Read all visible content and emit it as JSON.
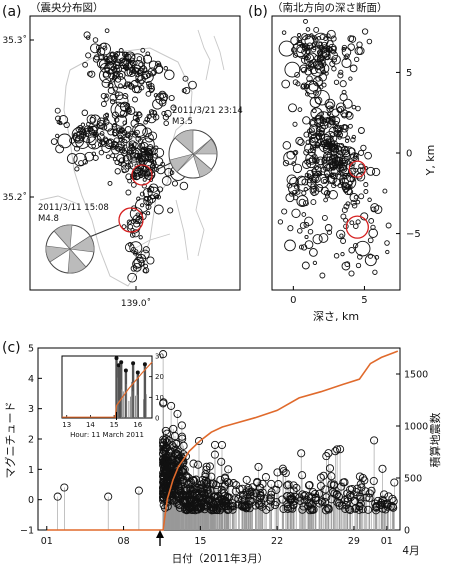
{
  "panel_a": {
    "label": "(a)",
    "title": "（震央分布図）",
    "lat_top": "35.3˚",
    "lat_mid": "35.2˚",
    "lon_label": "139.0˚",
    "annotation_1": {
      "line1": "2011/3/21 23:14",
      "line2": "M3.5"
    },
    "annotation_2": {
      "line1": "2011/3/11 15:08",
      "line2": "M4.8"
    }
  },
  "panel_b": {
    "label": "(b)",
    "title": "（南北方向の深さ断面）",
    "y_ticks": [
      "5",
      "0",
      "−5"
    ],
    "y_axis_label": "Y, km",
    "x_ticks": [
      "0",
      "5"
    ],
    "x_axis_label": "深さ, km"
  },
  "panel_c": {
    "label": "(c)",
    "left_axis_label": "マグニチュード",
    "right_axis_label": "積算地震数",
    "x_axis_label": "日付（2011年3月）",
    "april_label": "4月",
    "x_ticks": [
      "01",
      "08",
      "15",
      "22",
      "29",
      "01"
    ],
    "left_ticks": [
      "5",
      "4",
      "3",
      "2",
      "1",
      "0",
      "−1"
    ],
    "right_ticks": [
      "1500",
      "1000",
      "500",
      "0"
    ],
    "inset": {
      "x_ticks": [
        "13",
        "14",
        "15",
        "16"
      ],
      "right_ticks": [
        "30",
        "20",
        "10",
        "0"
      ],
      "xlabel": "Hour: 11 March 2011"
    }
  },
  "chart_data": [
    {
      "type": "scatter",
      "panel": "(a)",
      "title": "（震央分布図）",
      "y_ticks": [
        "35.3˚",
        "35.2˚"
      ],
      "x_ticks": [
        "139.0˚"
      ],
      "highlighted_events": [
        {
          "label": "2011/3/21 23:14",
          "magnitude": 3.5
        },
        {
          "label": "2011/3/11 15:08",
          "magnitude": 4.8
        }
      ]
    },
    {
      "type": "scatter",
      "panel": "(b)",
      "title": "（南北方向の深さ断面）",
      "xlabel": "深さ, km",
      "ylabel": "Y, km",
      "xlim": [
        -1.5,
        7.5
      ],
      "ylim": [
        -8.5,
        8.5
      ],
      "x_ticks": [
        0,
        5
      ],
      "y_ticks": [
        5,
        0,
        -5
      ],
      "highlighted_events": [
        {
          "depth_km": 4.5,
          "y_km": -1.0
        },
        {
          "depth_km": 4.5,
          "y_km": -4.6
        }
      ]
    },
    {
      "type": "scatter",
      "panel": "(c)",
      "xlabel": "日付（2011年3月）",
      "ylabel": "マグニチュード",
      "y2label": "積算地震数",
      "x_ticks": [
        "01",
        "08",
        "15",
        "22",
        "29",
        "01"
      ],
      "ylim": [
        -1,
        5
      ],
      "y2lim": [
        0,
        1750
      ],
      "early_events": [
        {
          "day": 2.0,
          "magnitude": 0.1
        },
        {
          "day": 2.6,
          "magnitude": 0.4
        },
        {
          "day": 6.6,
          "magnitude": 0.1
        },
        {
          "day": 9.4,
          "magnitude": 0.3
        }
      ],
      "mainshock": {
        "day": 11.6,
        "magnitude": 4.8
      },
      "cumulative_count": {
        "day": [
          1,
          11.6,
          11.8,
          12,
          12.5,
          13,
          14,
          15,
          16,
          17,
          18,
          20,
          22,
          24,
          26,
          28,
          29.5,
          30.5,
          31.5,
          32.5,
          33
        ],
        "count": [
          0,
          0,
          150,
          300,
          480,
          610,
          760,
          860,
          940,
          990,
          1020,
          1080,
          1150,
          1270,
          1330,
          1400,
          1450,
          1600,
          1660,
          1700,
          1720
        ]
      }
    },
    {
      "type": "bar",
      "panel": "(c) inset",
      "xlabel": "Hour: 11 March 2011",
      "x_ticks": [
        13,
        14,
        15,
        16
      ],
      "xlim": [
        12.8,
        16.6
      ],
      "ylim": [
        -1,
        5
      ],
      "y2lim": [
        0,
        30
      ],
      "events": [
        {
          "hour": 15.1,
          "magnitude": 4.8
        },
        {
          "hour": 15.2,
          "magnitude": 4.1
        },
        {
          "hour": 15.3,
          "magnitude": 4.4
        },
        {
          "hour": 15.5,
          "magnitude": 3.6
        },
        {
          "hour": 15.8,
          "magnitude": 4.3
        },
        {
          "hour": 16.0,
          "magnitude": 3.4
        },
        {
          "hour": 16.3,
          "magnitude": 4.2
        }
      ]
    }
  ]
}
